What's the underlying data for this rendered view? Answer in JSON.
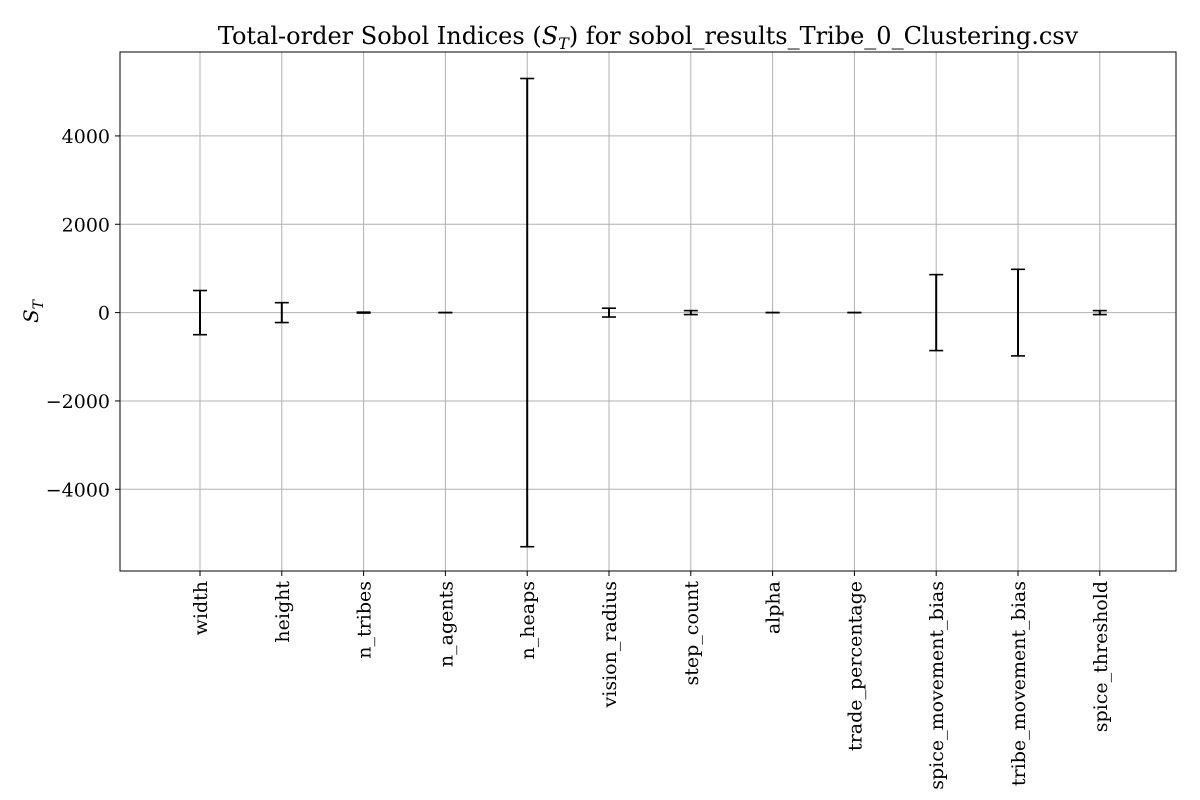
{
  "chart_data": {
    "type": "errorbar",
    "title": "Total-order Sobol Indices (S_T) for sobol_results_Tribe_0_Clustering.csv",
    "ylabel": "S_T",
    "xlabel": "",
    "ylim": [
      -5850,
      5900
    ],
    "grid": true,
    "yticks": [
      -4000,
      -2000,
      0,
      2000,
      4000
    ],
    "ytick_labels": [
      "−4000",
      "−2000",
      "0",
      "2000",
      "4000"
    ],
    "categories": [
      "width",
      "height",
      "n_tribes",
      "n_agents",
      "n_heaps",
      "vision_radius",
      "step_count",
      "alpha",
      "trade_percentage",
      "spice_movement_bias",
      "tribe_movement_bias",
      "spice_threshold"
    ],
    "values": [
      0,
      0,
      0,
      0,
      0,
      0,
      0,
      0,
      0,
      0,
      0,
      0
    ],
    "errors": [
      500,
      225,
      10,
      2,
      5300,
      100,
      45,
      2,
      2,
      860,
      980,
      45
    ]
  }
}
